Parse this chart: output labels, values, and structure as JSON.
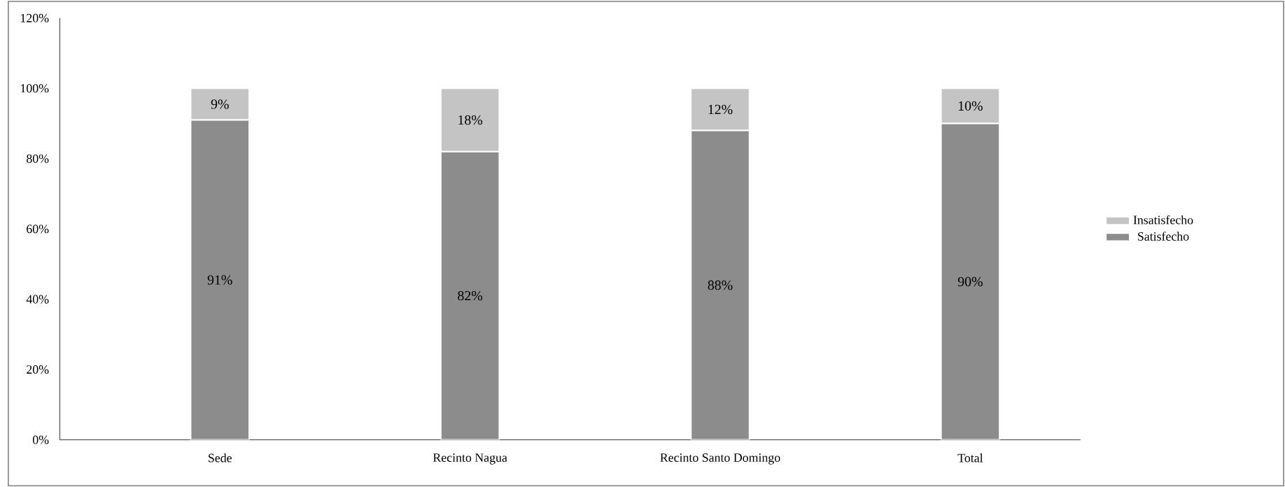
{
  "chart_data": {
    "type": "bar",
    "stacked": true,
    "categories": [
      "Sede",
      "Recinto Nagua",
      "Recinto Santo Domingo",
      "Total"
    ],
    "series": [
      {
        "name": "Satisfecho",
        "color": "#8c8c8c",
        "values": [
          91,
          82,
          88,
          90
        ],
        "value_labels": [
          "91%",
          "82%",
          "88%",
          "90%"
        ]
      },
      {
        "name": "Insatisfecho",
        "color": "#c4c4c4",
        "values": [
          9,
          18,
          12,
          10
        ],
        "value_labels": [
          "9%",
          "18%",
          "12%",
          "10%"
        ]
      }
    ],
    "ylim": [
      0,
      120
    ],
    "yticks": [
      {
        "value": 0,
        "label": "0%"
      },
      {
        "value": 20,
        "label": "20%"
      },
      {
        "value": 40,
        "label": "40%"
      },
      {
        "value": 60,
        "label": "60%"
      },
      {
        "value": 80,
        "label": "80%"
      },
      {
        "value": 100,
        "label": "100%"
      },
      {
        "value": 120,
        "label": "120%"
      }
    ],
    "legend": "right"
  }
}
